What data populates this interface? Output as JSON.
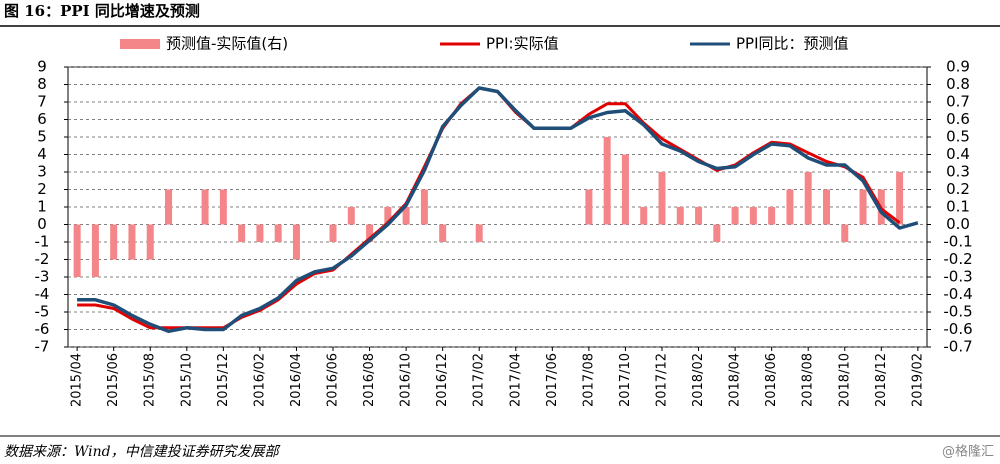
{
  "chart_data": {
    "type": "combo",
    "title": "图 16：PPI 同比增速及预测",
    "source": "数据来源：Wind，中信建投证券研究发展部",
    "watermark": "@格隆汇",
    "categories": [
      "2015/04",
      null,
      "2015/06",
      null,
      "2015/08",
      null,
      "2015/10",
      null,
      "2015/12",
      null,
      "2016/02",
      null,
      "2016/04",
      null,
      "2016/06",
      null,
      "2016/08",
      null,
      "2016/10",
      null,
      "2016/12",
      null,
      "2017/02",
      null,
      "2017/04",
      null,
      "2017/06",
      null,
      "2017/08",
      null,
      "2017/10",
      null,
      "2017/12",
      null,
      "2018/02",
      null,
      "2018/04",
      null,
      "2018/06",
      null,
      "2018/08",
      null,
      "2018/10",
      null,
      "2018/12",
      null,
      "2019/02"
    ],
    "series": [
      {
        "name": "预测值-实际值(右)",
        "type": "bar",
        "axis": "y2",
        "color": "#f4868a",
        "values": [
          -0.3,
          -0.3,
          -0.2,
          -0.2,
          -0.2,
          0.2,
          0,
          0.2,
          0.2,
          -0.1,
          -0.1,
          -0.1,
          -0.2,
          0,
          -0.1,
          0.1,
          -0.1,
          0.1,
          0.1,
          0.2,
          -0.1,
          0,
          -0.1,
          0,
          0,
          0,
          0,
          0,
          0.2,
          0.5,
          0.4,
          0.1,
          0.3,
          0.1,
          0.1,
          -0.1,
          0.1,
          0.1,
          0.1,
          0.2,
          0.3,
          0.2,
          -0.1,
          0.2,
          0.2,
          0.3,
          0
        ]
      },
      {
        "name": "PPI:实际值",
        "type": "line",
        "color": "#e00000",
        "values": [
          -4.6,
          -4.6,
          -4.8,
          -5.4,
          -5.9,
          -5.9,
          -5.9,
          -5.9,
          -5.9,
          -5.3,
          -4.9,
          -4.3,
          -3.4,
          -2.8,
          -2.6,
          -1.7,
          -0.8,
          0.1,
          1.2,
          3.3,
          5.5,
          6.9,
          7.8,
          7.6,
          6.4,
          5.5,
          5.5,
          5.5,
          6.3,
          6.9,
          6.9,
          5.8,
          4.9,
          4.3,
          3.7,
          3.1,
          3.4,
          4.1,
          4.7,
          4.6,
          4.1,
          3.6,
          3.3,
          2.7,
          0.9,
          0.1,
          null
        ]
      },
      {
        "name": "PPI同比：预测值",
        "type": "line",
        "color": "#1f4e79",
        "values": [
          -4.3,
          -4.3,
          -4.6,
          -5.2,
          -5.7,
          -6.1,
          -5.9,
          -6.0,
          -6.0,
          -5.2,
          -4.8,
          -4.2,
          -3.2,
          -2.7,
          -2.5,
          -1.8,
          -0.9,
          0.0,
          1.1,
          3.1,
          5.6,
          6.8,
          7.8,
          7.6,
          6.5,
          5.5,
          5.5,
          5.5,
          6.1,
          6.4,
          6.5,
          5.7,
          4.6,
          4.2,
          3.6,
          3.2,
          3.3,
          4.0,
          4.6,
          4.5,
          3.8,
          3.4,
          3.4,
          2.5,
          0.7,
          -0.2,
          0.1
        ]
      }
    ],
    "ylim": [
      -7,
      9
    ],
    "yticks": [
      -7,
      -6,
      -5,
      -4,
      -3,
      -2,
      -1,
      0,
      1,
      2,
      3,
      4,
      5,
      6,
      7,
      8,
      9
    ],
    "y2lim": [
      -0.7,
      0.9
    ],
    "y2ticks": [
      -0.7,
      -0.6,
      -0.5,
      -0.4,
      -0.3,
      -0.2,
      -0.1,
      {
        "value": 0,
        "label": "0.0"
      },
      0.1,
      0.2,
      0.3,
      0.4,
      0.5,
      0.6,
      0.7,
      0.8,
      0.9
    ],
    "grid": true
  }
}
